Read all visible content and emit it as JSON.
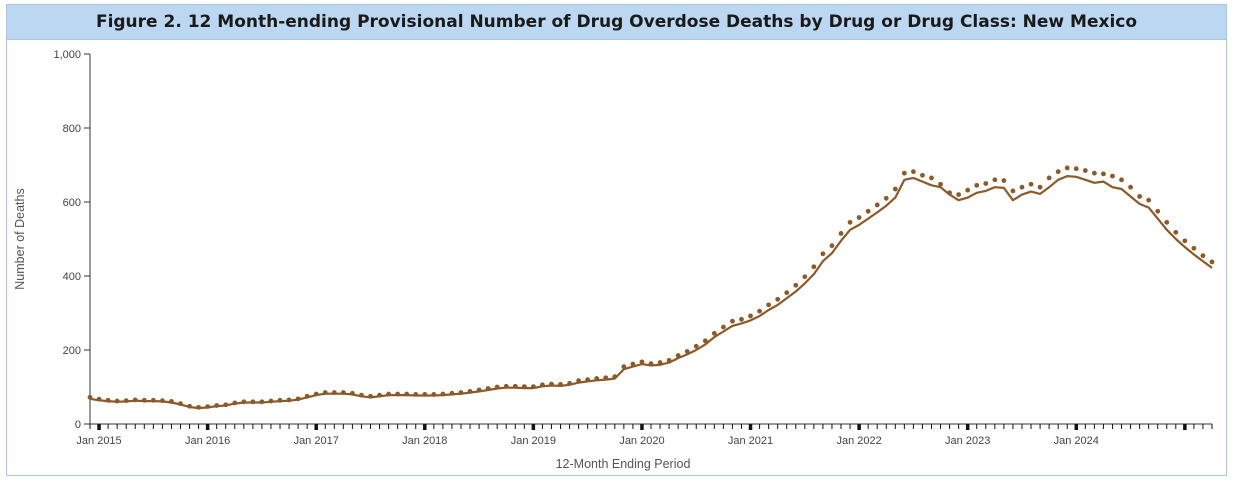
{
  "title": "Figure 2. 12 Month-ending Provisional Number of Drug Overdose Deaths by Drug or Drug Class: New Mexico",
  "chart_data": {
    "type": "line",
    "xlabel": "12-Month Ending Period",
    "ylabel": "Number of Deaths",
    "ylim": [
      0,
      1000
    ],
    "yticks": [
      0,
      200,
      400,
      600,
      800,
      1000
    ],
    "ytick_labels": [
      "0",
      "200",
      "400",
      "600",
      "800",
      "1,000"
    ],
    "xtick_labels": [
      "Jan 2015",
      "Jan 2016",
      "Jan 2017",
      "Jan 2018",
      "Jan 2019",
      "Jan 2020",
      "Jan 2021",
      "Jan 2022",
      "Jan 2023",
      "Jan 2024"
    ],
    "x_start": "Dec 2014",
    "x_end": "Dec 2024",
    "grid": false,
    "colors": {
      "line": "#8b5a2b",
      "dots": "#8b5a2b",
      "axis": "#333333"
    },
    "series": [
      {
        "style": "solid",
        "values": [
          68,
          64,
          62,
          60,
          61,
          63,
          62,
          62,
          61,
          58,
          53,
          46,
          43,
          45,
          48,
          50,
          55,
          58,
          58,
          58,
          60,
          62,
          63,
          66,
          72,
          78,
          82,
          82,
          82,
          80,
          75,
          72,
          75,
          78,
          78,
          78,
          77,
          77,
          77,
          78,
          80,
          82,
          85,
          88,
          92,
          96,
          98,
          98,
          97,
          97,
          102,
          104,
          103,
          106,
          112,
          115,
          118,
          120,
          123,
          148,
          155,
          162,
          158,
          160,
          166,
          178,
          188,
          200,
          215,
          235,
          250,
          265,
          272,
          280,
          292,
          308,
          322,
          340,
          358,
          380,
          405,
          440,
          462,
          495,
          525,
          538,
          555,
          572,
          590,
          612,
          660,
          665,
          655,
          645,
          640,
          620,
          605,
          612,
          625,
          630,
          640,
          638,
          605,
          620,
          628,
          622,
          640,
          660,
          670,
          668,
          660,
          652,
          655,
          640,
          635,
          615,
          595,
          585,
          555,
          525,
          500,
          478,
          458,
          440,
          422
        ]
      },
      {
        "style": "dotted",
        "values": [
          72,
          67,
          64,
          62,
          63,
          65,
          64,
          64,
          63,
          61,
          55,
          48,
          45,
          47,
          50,
          52,
          57,
          60,
          60,
          60,
          62,
          64,
          65,
          68,
          75,
          81,
          85,
          85,
          85,
          83,
          78,
          75,
          78,
          81,
          81,
          81,
          80,
          80,
          80,
          81,
          83,
          85,
          88,
          92,
          96,
          100,
          102,
          102,
          101,
          101,
          106,
          108,
          107,
          110,
          117,
          120,
          123,
          125,
          128,
          155,
          162,
          168,
          163,
          166,
          172,
          185,
          196,
          210,
          225,
          245,
          262,
          278,
          283,
          292,
          305,
          322,
          337,
          355,
          375,
          398,
          425,
          460,
          482,
          515,
          545,
          558,
          575,
          592,
          610,
          635,
          678,
          682,
          672,
          665,
          648,
          625,
          620,
          632,
          645,
          650,
          660,
          658,
          630,
          640,
          648,
          640,
          665,
          682,
          692,
          690,
          685,
          678,
          676,
          670,
          660,
          640,
          615,
          605,
          575,
          545,
          518,
          495,
          475,
          455,
          438
        ]
      }
    ]
  }
}
